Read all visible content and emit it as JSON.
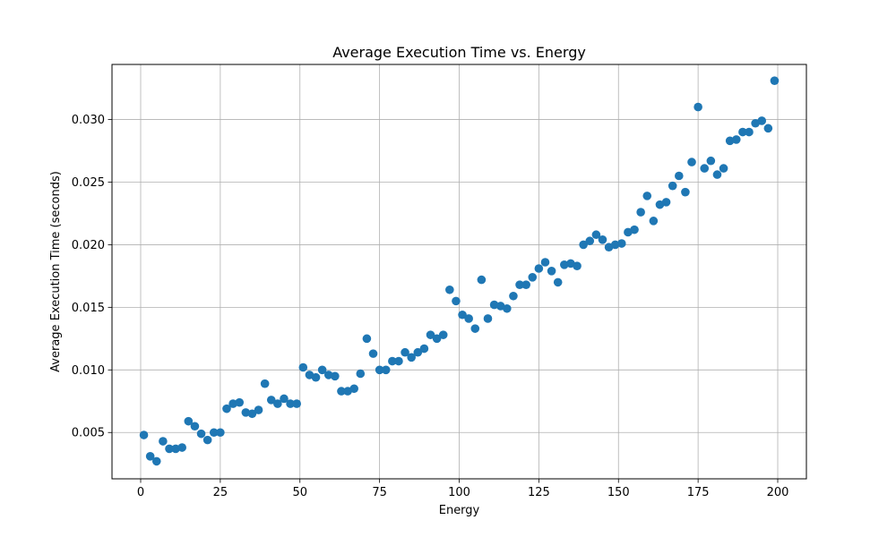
{
  "chart_data": {
    "type": "scatter",
    "title": "Average Execution Time vs. Energy",
    "xlabel": "Energy",
    "ylabel": "Average Execution Time (seconds)",
    "xlim": [
      -9,
      209
    ],
    "ylim": [
      0.0013,
      0.0344
    ],
    "xticks": [
      0,
      25,
      50,
      75,
      100,
      125,
      150,
      175,
      200
    ],
    "xtick_labels": [
      "0",
      "25",
      "50",
      "75",
      "100",
      "125",
      "150",
      "175",
      "200"
    ],
    "yticks": [
      0.005,
      0.01,
      0.015,
      0.02,
      0.025,
      0.03
    ],
    "ytick_labels": [
      "0.005",
      "0.010",
      "0.015",
      "0.020",
      "0.025",
      "0.030"
    ],
    "grid": true,
    "legend": "none",
    "marker_color": "#1f77b4",
    "series": [
      {
        "x": [
          1,
          3,
          5,
          7,
          9,
          11,
          13,
          15,
          17,
          19,
          21,
          23,
          25,
          27,
          29,
          31,
          33,
          35,
          37,
          39,
          41,
          43,
          45,
          47,
          49,
          51,
          53,
          55,
          57,
          59,
          61,
          63,
          65,
          67,
          69,
          71,
          73,
          75,
          77,
          79,
          81,
          83,
          85,
          87,
          89,
          91,
          93,
          95,
          97,
          99,
          101,
          103,
          105,
          107,
          109,
          111,
          113,
          115,
          117,
          119,
          121,
          123,
          125,
          127,
          129,
          131,
          133,
          135,
          137,
          139,
          141,
          143,
          145,
          147,
          149,
          151,
          153,
          155,
          157,
          159,
          161,
          163,
          165,
          167,
          169,
          171,
          173,
          175,
          177,
          179,
          181,
          183,
          185,
          187,
          189,
          191,
          193,
          195,
          197,
          199
        ],
        "y": [
          0.0048,
          0.0031,
          0.0027,
          0.0043,
          0.0037,
          0.0037,
          0.0038,
          0.0059,
          0.0055,
          0.0049,
          0.0044,
          0.005,
          0.005,
          0.0069,
          0.0073,
          0.0074,
          0.0066,
          0.0065,
          0.0068,
          0.0089,
          0.0076,
          0.0073,
          0.0077,
          0.0073,
          0.0073,
          0.0102,
          0.0096,
          0.0094,
          0.01,
          0.0096,
          0.0095,
          0.0083,
          0.0083,
          0.0085,
          0.0097,
          0.0125,
          0.0113,
          0.01,
          0.01,
          0.0107,
          0.0107,
          0.0114,
          0.011,
          0.0114,
          0.0117,
          0.0128,
          0.0125,
          0.0128,
          0.0164,
          0.0155,
          0.0144,
          0.0141,
          0.0133,
          0.0172,
          0.0141,
          0.0152,
          0.0151,
          0.0149,
          0.0159,
          0.0168,
          0.0168,
          0.0174,
          0.0181,
          0.0186,
          0.0179,
          0.017,
          0.0184,
          0.0185,
          0.0183,
          0.02,
          0.0203,
          0.0208,
          0.0204,
          0.0198,
          0.02,
          0.0201,
          0.021,
          0.0212,
          0.0226,
          0.0239,
          0.0219,
          0.0232,
          0.0234,
          0.0247,
          0.0255,
          0.0242,
          0.0266,
          0.031,
          0.0261,
          0.0267,
          0.0256,
          0.0261,
          0.0283,
          0.0284,
          0.029,
          0.029,
          0.0297,
          0.0299,
          0.0293,
          0.0331
        ]
      }
    ]
  }
}
